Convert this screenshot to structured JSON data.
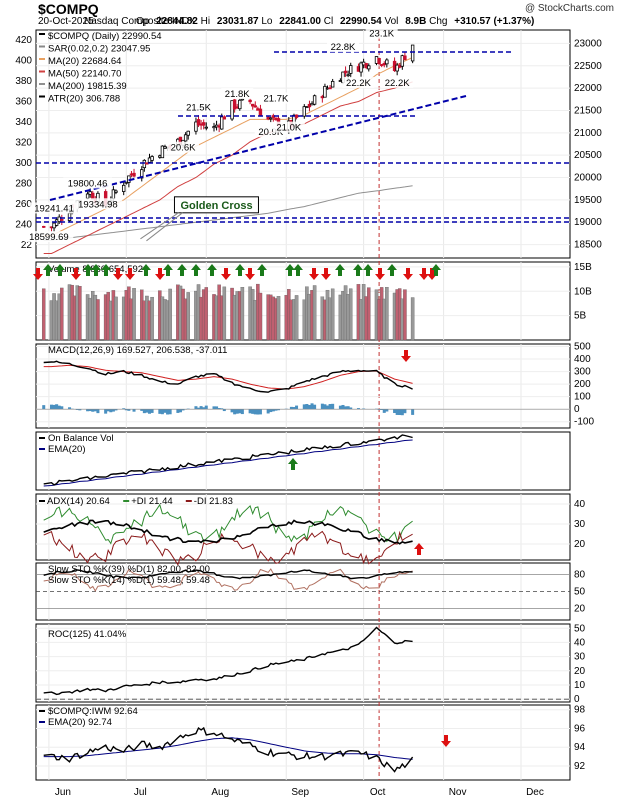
{
  "header": {
    "title": "$COMPQ",
    "date": "20-Oct-2025",
    "name": "Nasdaq Composite INDX",
    "open_label": "Op",
    "open": "22844.82",
    "high_label": "Hi",
    "high": "23031.87",
    "low_label": "Lo",
    "low": "22841.00",
    "close_label": "Cl",
    "close": "22990.54",
    "vol_label": "Vol",
    "vol": "8.9B",
    "chg_label": "Chg",
    "chg": "+310.57 (+1.37%)",
    "watermark": "@ StockCharts.com"
  },
  "x_axis": {
    "months": [
      "Jun",
      "Jul",
      "Aug",
      "Sep",
      "Oct",
      "Nov",
      "Dec"
    ]
  },
  "colors": {
    "up": "#000000",
    "down": "#c8102e",
    "ma20": "#e8a060",
    "ma50": "#d04040",
    "ma200": "#909090",
    "trend": "#0000aa",
    "volbar": "#999999",
    "arrow_up": "#1a7a1a",
    "arrow_down": "#dd1010"
  },
  "chart_data": [
    {
      "type": "candlestick",
      "name": "price",
      "legend": [
        {
          "label": "$COMPQ (Daily) 22990.54",
          "color": "#000000"
        },
        {
          "label": "SAR(0.02,0.2) 23047.95",
          "color": "#888888"
        },
        {
          "label": "MA(20) 22684.64",
          "color": "#e8a060"
        },
        {
          "label": "MA(50) 22140.70",
          "color": "#d04040"
        },
        {
          "label": "MA(200) 19815.39",
          "color": "#909090"
        },
        {
          "label": "ATR(20) 306.788",
          "color": "#000000"
        }
      ],
      "left_ticks": [
        "420",
        "400",
        "380",
        "360",
        "340",
        "320",
        "300",
        "280",
        "260",
        "240",
        "22"
      ],
      "right_ticks": [
        "23000",
        "22500",
        "22000",
        "21500",
        "21000",
        "20500",
        "20000",
        "19500",
        "19000",
        "18500"
      ],
      "ylim": [
        18200,
        23300
      ],
      "annotations": [
        {
          "text": "22.8K",
          "x": "2025-09-23",
          "y": 22850
        },
        {
          "text": "23.1K",
          "x": "2025-10-08",
          "y": 23150
        },
        {
          "text": "22.2K",
          "x": "2025-09-29",
          "y": 22050
        },
        {
          "text": "22.2K",
          "x": "2025-10-14",
          "y": 22050
        },
        {
          "text": "21.8K",
          "x": "2025-08-13",
          "y": 21800
        },
        {
          "text": "21.7K",
          "x": "2025-08-28",
          "y": 21700
        },
        {
          "text": "21.5K",
          "x": "2025-07-29",
          "y": 21500
        },
        {
          "text": "20.9K",
          "x": "2025-08-26",
          "y": 20950
        },
        {
          "text": "21.0K",
          "x": "2025-09-02",
          "y": 21050
        },
        {
          "text": "20.6K",
          "x": "2025-07-23",
          "y": 20600
        },
        {
          "text": "19800.46",
          "x": "2025-06-16",
          "y": 19800
        },
        {
          "text": "19241.41",
          "x": "2025-06-03",
          "y": 19241
        },
        {
          "text": "19334.98",
          "x": "2025-06-20",
          "y": 19335
        },
        {
          "text": "18599.69",
          "x": "2025-06-01",
          "y": 18600
        },
        {
          "text": "Golden Cross",
          "x": "2025-07-22",
          "y": 19300
        }
      ],
      "x": [
        "2025-06-02",
        "2025-06-09",
        "2025-06-16",
        "2025-06-23",
        "2025-06-30",
        "2025-07-07",
        "2025-07-14",
        "2025-07-21",
        "2025-07-28",
        "2025-08-04",
        "2025-08-11",
        "2025-08-18",
        "2025-08-25",
        "2025-09-01",
        "2025-09-08",
        "2025-09-15",
        "2025-09-22",
        "2025-09-29",
        "2025-10-06",
        "2025-10-13",
        "2025-10-20"
      ],
      "close": [
        18900,
        19300,
        19700,
        19400,
        19900,
        20300,
        20600,
        20800,
        21200,
        21100,
        21600,
        21700,
        21300,
        21100,
        21500,
        21900,
        22300,
        22500,
        22700,
        22400,
        22990
      ],
      "ma20": [
        18700,
        18900,
        19100,
        19300,
        19500,
        19800,
        20100,
        20400,
        20700,
        20900,
        21100,
        21300,
        21300,
        21300,
        21400,
        21600,
        21800,
        22000,
        22300,
        22500,
        22685
      ],
      "ma50": [
        18300,
        18500,
        18700,
        18900,
        19100,
        19300,
        19500,
        19800,
        20000,
        20300,
        20500,
        20800,
        21000,
        21100,
        21200,
        21400,
        21600,
        21700,
        21900,
        22000,
        22140
      ],
      "ma200": [
        18600,
        18650,
        18700,
        18750,
        18800,
        18850,
        18900,
        18950,
        19000,
        19050,
        19100,
        19150,
        19200,
        19280,
        19350,
        19450,
        19550,
        19650,
        19700,
        19760,
        19815
      ]
    },
    {
      "type": "bar",
      "name": "volume",
      "legend": [
        {
          "label": "Volume 8,860,654,592",
          "color": "#000000"
        }
      ],
      "right_ticks": [
        "15B",
        "10B",
        "5B"
      ],
      "ylim": [
        0,
        16
      ]
    },
    {
      "type": "line",
      "name": "macd",
      "legend": [
        {
          "label": "MACD(12,26,9) 169.527, 206.538, -37.011",
          "color": "#000000"
        }
      ],
      "right_ticks": [
        "500",
        "400",
        "300",
        "200",
        "100",
        "0",
        "-100"
      ],
      "ylim": [
        -150,
        520
      ]
    },
    {
      "type": "line",
      "name": "obv",
      "legend": [
        {
          "label": "On Balance Vol",
          "color": "#000000"
        },
        {
          "label": "EMA(20)",
          "color": "#000080"
        }
      ]
    },
    {
      "type": "line",
      "name": "adx",
      "legend": [
        {
          "label": "ADX(14) 20.64",
          "color": "#000000"
        },
        {
          "label": "+DI 21.44",
          "color": "#2e8b2e"
        },
        {
          "label": "-DI 21.83",
          "color": "#8b1a1a"
        }
      ],
      "right_ticks": [
        "40",
        "30",
        "20"
      ],
      "ylim": [
        12,
        45
      ]
    },
    {
      "type": "line",
      "name": "stochastic",
      "legend": [
        {
          "label": "Slow STO %K(39) %D(1) 82.00, 82.00",
          "color": "#000000"
        },
        {
          "label": "Slow STO %K(14) %D(1) 59.48, 59.48",
          "color": "#b07060"
        }
      ],
      "right_ticks": [
        "80",
        "50",
        "20"
      ],
      "ylim": [
        0,
        100
      ]
    },
    {
      "type": "line",
      "name": "roc",
      "legend": [
        {
          "label": "ROC(125) 41.04%",
          "color": "#000000"
        }
      ],
      "right_ticks": [
        "50",
        "40",
        "30",
        "20",
        "10",
        "0"
      ],
      "ylim": [
        -2,
        53
      ]
    },
    {
      "type": "line",
      "name": "ratio",
      "legend": [
        {
          "label": "$COMPQ:IWM 92.64",
          "color": "#000000"
        },
        {
          "label": "EMA(20) 92.74",
          "color": "#000080"
        }
      ],
      "right_ticks": [
        "98",
        "96",
        "94",
        "92"
      ],
      "ylim": [
        90.5,
        98.5
      ]
    }
  ]
}
